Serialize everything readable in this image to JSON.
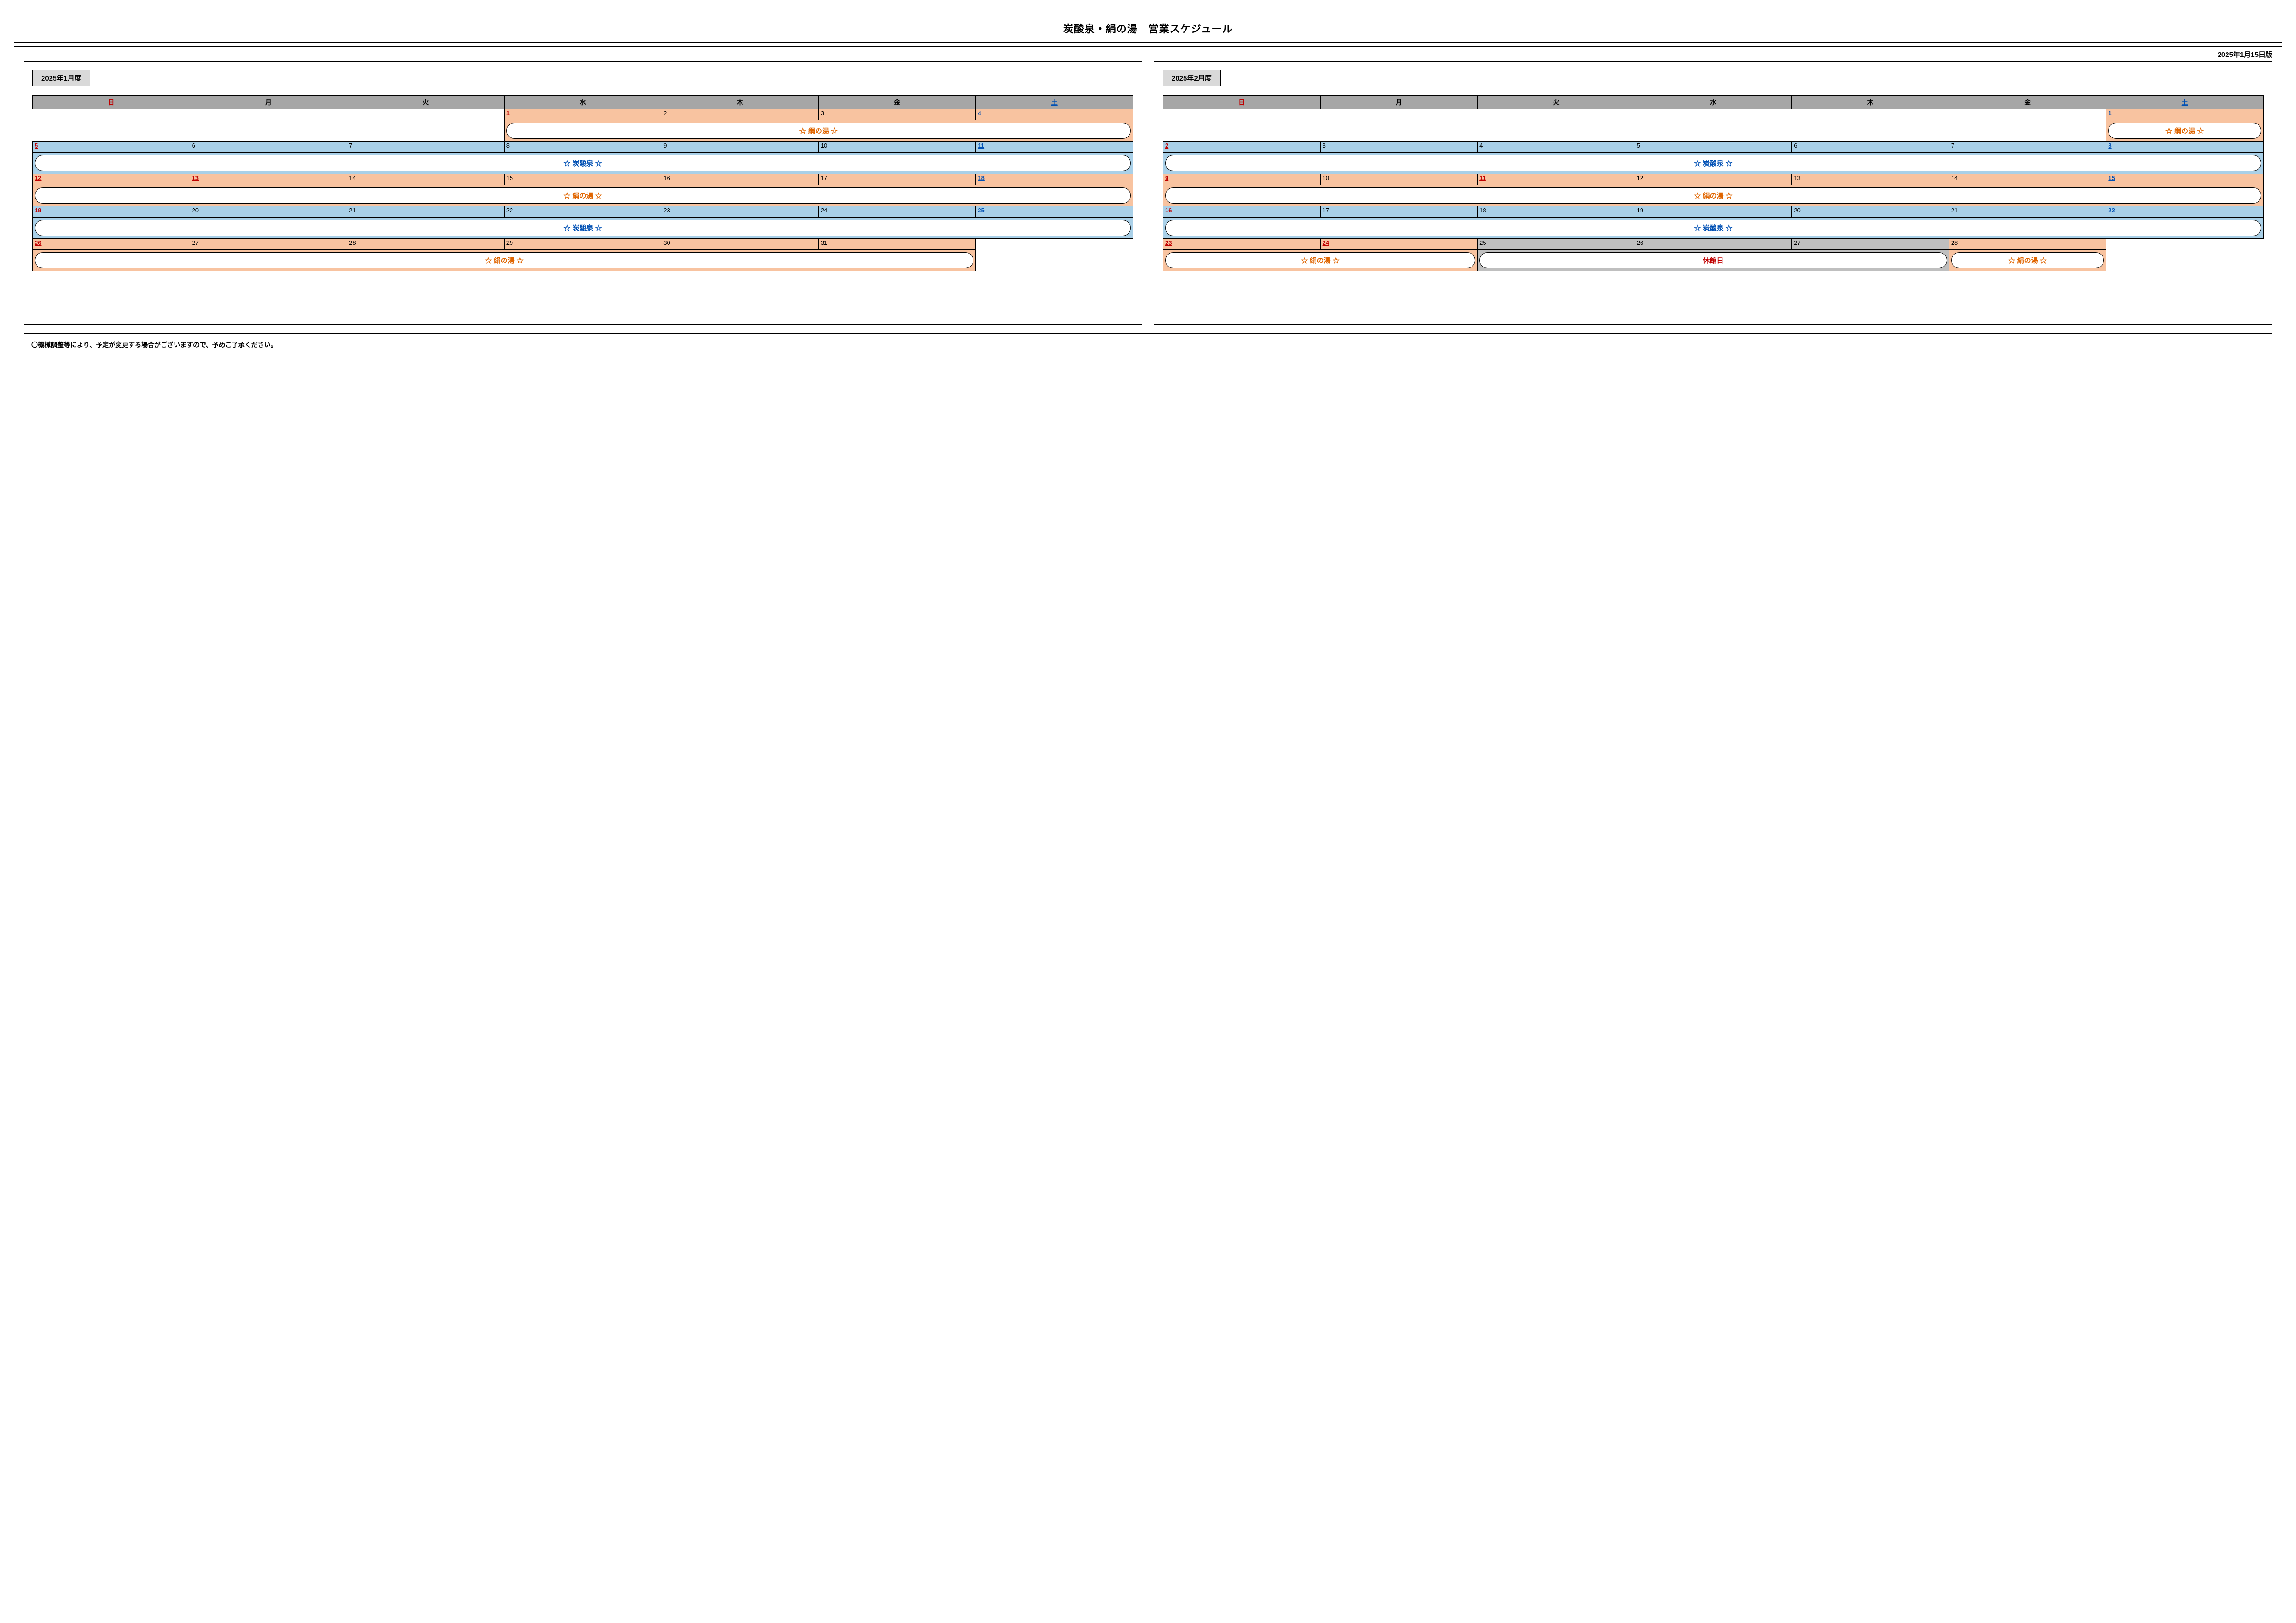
{
  "title": "炭酸泉・絹の湯　営業スケジュール",
  "version": "2025年1月15日版",
  "footnote": "〇機械調整等により、予定が変更する場合がございますので、予めご了承ください。",
  "dow": {
    "sun": "日",
    "mon": "月",
    "tue": "火",
    "wed": "水",
    "thu": "木",
    "fri": "金",
    "sat": "土"
  },
  "labels": {
    "kinu": "☆ 絹の湯 ☆",
    "tansan": "☆ 炭酸泉 ☆",
    "closed": "休館日"
  },
  "colors": {
    "orange_bg": "#f8c3a0",
    "blue_bg": "#a9d0e8",
    "gray_bg": "#bfbfbf",
    "header_bg": "#a6a6a6",
    "month_bg": "#d9d9d9",
    "orange_text": "#e06500",
    "blue_text": "#0050b4",
    "red_text": "#c00000"
  },
  "months": {
    "jan": {
      "label": "2025年1月度",
      "weeks": [
        {
          "days": [
            null,
            null,
            null,
            {
              "n": "1",
              "c": "red",
              "bg": "orange"
            },
            {
              "n": "2",
              "bg": "orange"
            },
            {
              "n": "3",
              "bg": "orange"
            },
            {
              "n": "4",
              "c": "blue",
              "bg": "orange"
            }
          ],
          "bands": [
            {
              "span": [
                3,
                6
              ],
              "label": "kinu",
              "style": "orange",
              "bg": "orange"
            }
          ]
        },
        {
          "days": [
            {
              "n": "5",
              "c": "red",
              "bg": "blue"
            },
            {
              "n": "6",
              "bg": "blue"
            },
            {
              "n": "7",
              "bg": "blue"
            },
            {
              "n": "8",
              "bg": "blue"
            },
            {
              "n": "9",
              "bg": "blue"
            },
            {
              "n": "10",
              "bg": "blue"
            },
            {
              "n": "11",
              "c": "blue",
              "bg": "blue"
            }
          ],
          "bands": [
            {
              "span": [
                0,
                6
              ],
              "label": "tansan",
              "style": "blue",
              "bg": "blue"
            }
          ]
        },
        {
          "days": [
            {
              "n": "12",
              "c": "red",
              "bg": "orange"
            },
            {
              "n": "13",
              "c": "red",
              "bg": "orange"
            },
            {
              "n": "14",
              "bg": "orange"
            },
            {
              "n": "15",
              "bg": "orange"
            },
            {
              "n": "16",
              "bg": "orange"
            },
            {
              "n": "17",
              "bg": "orange"
            },
            {
              "n": "18",
              "c": "blue",
              "bg": "orange"
            }
          ],
          "bands": [
            {
              "span": [
                0,
                6
              ],
              "label": "kinu",
              "style": "orange",
              "bg": "orange"
            }
          ]
        },
        {
          "days": [
            {
              "n": "19",
              "c": "red",
              "bg": "blue"
            },
            {
              "n": "20",
              "bg": "blue"
            },
            {
              "n": "21",
              "bg": "blue"
            },
            {
              "n": "22",
              "bg": "blue"
            },
            {
              "n": "23",
              "bg": "blue"
            },
            {
              "n": "24",
              "bg": "blue"
            },
            {
              "n": "25",
              "c": "blue",
              "bg": "blue"
            }
          ],
          "bands": [
            {
              "span": [
                0,
                6
              ],
              "label": "tansan",
              "style": "blue",
              "bg": "blue"
            }
          ]
        },
        {
          "days": [
            {
              "n": "26",
              "c": "red",
              "bg": "orange"
            },
            {
              "n": "27",
              "bg": "orange"
            },
            {
              "n": "28",
              "bg": "orange"
            },
            {
              "n": "29",
              "bg": "orange"
            },
            {
              "n": "30",
              "bg": "orange"
            },
            {
              "n": "31",
              "bg": "orange"
            },
            null
          ],
          "bands": [
            {
              "span": [
                0,
                5
              ],
              "label": "kinu",
              "style": "orange",
              "bg": "orange"
            }
          ]
        }
      ]
    },
    "feb": {
      "label": "2025年2月度",
      "weeks": [
        {
          "days": [
            null,
            null,
            null,
            null,
            null,
            null,
            {
              "n": "1",
              "c": "blue",
              "bg": "orange"
            }
          ],
          "bands": [
            {
              "span": [
                6,
                6
              ],
              "label": "kinu",
              "style": "orange",
              "bg": "orange"
            }
          ]
        },
        {
          "days": [
            {
              "n": "2",
              "c": "red",
              "bg": "blue"
            },
            {
              "n": "3",
              "bg": "blue"
            },
            {
              "n": "4",
              "bg": "blue"
            },
            {
              "n": "5",
              "bg": "blue"
            },
            {
              "n": "6",
              "bg": "blue"
            },
            {
              "n": "7",
              "bg": "blue"
            },
            {
              "n": "8",
              "c": "blue",
              "bg": "blue"
            }
          ],
          "bands": [
            {
              "span": [
                0,
                6
              ],
              "label": "tansan",
              "style": "blue",
              "bg": "blue"
            }
          ]
        },
        {
          "days": [
            {
              "n": "9",
              "c": "red",
              "bg": "orange"
            },
            {
              "n": "10",
              "bg": "orange"
            },
            {
              "n": "11",
              "c": "red",
              "bg": "orange"
            },
            {
              "n": "12",
              "bg": "orange"
            },
            {
              "n": "13",
              "bg": "orange"
            },
            {
              "n": "14",
              "bg": "orange"
            },
            {
              "n": "15",
              "c": "blue",
              "bg": "orange"
            }
          ],
          "bands": [
            {
              "span": [
                0,
                6
              ],
              "label": "kinu",
              "style": "orange",
              "bg": "orange"
            }
          ]
        },
        {
          "days": [
            {
              "n": "16",
              "c": "red",
              "bg": "blue"
            },
            {
              "n": "17",
              "bg": "blue"
            },
            {
              "n": "18",
              "bg": "blue"
            },
            {
              "n": "19",
              "bg": "blue"
            },
            {
              "n": "20",
              "bg": "blue"
            },
            {
              "n": "21",
              "bg": "blue"
            },
            {
              "n": "22",
              "c": "blue",
              "bg": "blue"
            }
          ],
          "bands": [
            {
              "span": [
                0,
                6
              ],
              "label": "tansan",
              "style": "blue",
              "bg": "blue"
            }
          ]
        },
        {
          "days": [
            {
              "n": "23",
              "c": "red",
              "bg": "orange"
            },
            {
              "n": "24",
              "c": "red",
              "bg": "orange"
            },
            {
              "n": "25",
              "bg": "gray"
            },
            {
              "n": "26",
              "bg": "gray"
            },
            {
              "n": "27",
              "bg": "gray"
            },
            {
              "n": "28",
              "bg": "orange"
            },
            null
          ],
          "bands": [
            {
              "span": [
                0,
                1
              ],
              "label": "kinu",
              "style": "orange",
              "bg": "orange"
            },
            {
              "span": [
                2,
                4
              ],
              "label": "closed",
              "style": "red",
              "bg": "gray"
            },
            {
              "span": [
                5,
                5
              ],
              "label": "kinu",
              "style": "orange",
              "bg": "orange"
            }
          ]
        }
      ]
    }
  }
}
